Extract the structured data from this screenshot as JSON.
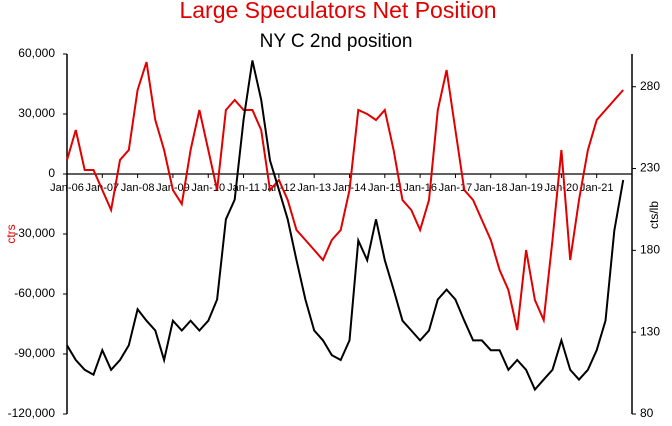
{
  "chart_data": {
    "type": "line",
    "title": "Large Speculators Net Position",
    "subtitle": "NY C 2nd position",
    "y_label": "ctrs",
    "y2_label": "cts/lb",
    "x": [
      "2006-01",
      "2006-04",
      "2006-07",
      "2006-10",
      "2007-01",
      "2007-04",
      "2007-07",
      "2007-10",
      "2008-01",
      "2008-04",
      "2008-07",
      "2008-10",
      "2009-01",
      "2009-04",
      "2009-07",
      "2009-10",
      "2010-01",
      "2010-04",
      "2010-07",
      "2010-10",
      "2011-01",
      "2011-04",
      "2011-07",
      "2011-10",
      "2012-01",
      "2012-04",
      "2012-07",
      "2012-10",
      "2013-01",
      "2013-04",
      "2013-07",
      "2013-10",
      "2014-01",
      "2014-04",
      "2014-07",
      "2014-10",
      "2015-01",
      "2015-04",
      "2015-07",
      "2015-10",
      "2016-01",
      "2016-04",
      "2016-07",
      "2016-10",
      "2017-01",
      "2017-04",
      "2017-07",
      "2017-10",
      "2018-01",
      "2018-04",
      "2018-07",
      "2018-10",
      "2019-01",
      "2019-04",
      "2019-07",
      "2019-10",
      "2020-01",
      "2020-04",
      "2020-07",
      "2020-10",
      "2021-01",
      "2021-04",
      "2021-07",
      "2021-10"
    ],
    "series": [
      {
        "name": "Large Speculators Net Position",
        "color": "#e00000",
        "axis": "y",
        "values": [
          7000,
          22000,
          2000,
          2000,
          -8000,
          -18000,
          7000,
          12000,
          42000,
          56000,
          27000,
          12000,
          -8000,
          -15000,
          12000,
          32000,
          12000,
          -8000,
          32000,
          37000,
          32000,
          32000,
          22000,
          -8000,
          -3000,
          -13000,
          -28000,
          -33000,
          -38000,
          -43000,
          -33000,
          -28000,
          -8000,
          32000,
          30000,
          27000,
          32000,
          12000,
          -13000,
          -18000,
          -28000,
          -13000,
          32000,
          52000,
          22000,
          -8000,
          -13000,
          -23000,
          -33000,
          -48000,
          -58000,
          -78000,
          -38000,
          -63000,
          -73000,
          -33000,
          12000,
          -43000,
          -13000,
          12000,
          27000,
          32000,
          37000,
          42000
        ]
      },
      {
        "name": "NY C 2nd position",
        "color": "#000000",
        "axis": "y2",
        "values": [
          122,
          113,
          107,
          104,
          119,
          107,
          113,
          122,
          144,
          137,
          131,
          113,
          137,
          131,
          137,
          131,
          137,
          150,
          199,
          211,
          260,
          296,
          272,
          235,
          217,
          199,
          174,
          150,
          131,
          125,
          116,
          113,
          125,
          186,
          174,
          199,
          174,
          156,
          137,
          131,
          125,
          131,
          150,
          156,
          150,
          137,
          125,
          125,
          119,
          119,
          107,
          113,
          107,
          95,
          101,
          107,
          125,
          107,
          101,
          107,
          119,
          137,
          192,
          223
        ]
      }
    ],
    "xlim": [
      "2006-01",
      "2022-01"
    ],
    "xticks": [
      {
        "value": "2006-01",
        "label": "Jan-06"
      },
      {
        "value": "2007-01",
        "label": "Jan-07"
      },
      {
        "value": "2008-01",
        "label": "Jan-08"
      },
      {
        "value": "2009-01",
        "label": "Jan-09"
      },
      {
        "value": "2010-01",
        "label": "Jan-10"
      },
      {
        "value": "2011-01",
        "label": "Jan-11"
      },
      {
        "value": "2012-01",
        "label": "Jan-12"
      },
      {
        "value": "2013-01",
        "label": "Jan-13"
      },
      {
        "value": "2014-01",
        "label": "Jan-14"
      },
      {
        "value": "2015-01",
        "label": "Jan-15"
      },
      {
        "value": "2016-01",
        "label": "Jan-16"
      },
      {
        "value": "2017-01",
        "label": "Jan-17"
      },
      {
        "value": "2018-01",
        "label": "Jan-18"
      },
      {
        "value": "2019-01",
        "label": "Jan-19"
      },
      {
        "value": "2020-01",
        "label": "Jan-20"
      },
      {
        "value": "2021-01",
        "label": "Jan-21"
      }
    ],
    "ylim": [
      -120000,
      60000
    ],
    "yticks": [
      {
        "value": -120000,
        "label": "-120,000"
      },
      {
        "value": -90000,
        "label": "-90,000"
      },
      {
        "value": -60000,
        "label": "-60,000"
      },
      {
        "value": -30000,
        "label": "-30,000"
      },
      0,
      {
        "value": 30000,
        "label": "30,000"
      },
      {
        "value": 60000,
        "label": "60,000"
      }
    ],
    "y2lim": [
      80,
      300
    ],
    "y2ticks": [
      80,
      130,
      180,
      230,
      280
    ]
  }
}
